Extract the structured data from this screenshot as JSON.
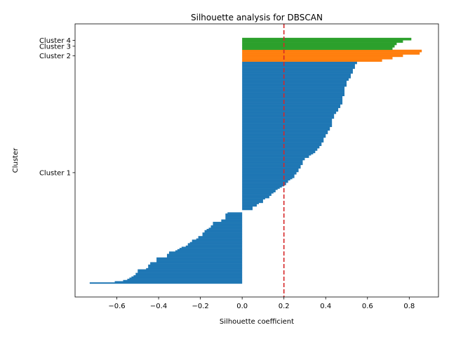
{
  "chart_data": {
    "type": "bar",
    "orientation": "horizontal",
    "title": "Silhouette analysis for DBSCAN",
    "xlabel": "Silhouette coefficient",
    "ylabel": "Cluster",
    "xlim": [
      -0.8,
      0.94
    ],
    "xticks": [
      {
        "value": -0.6,
        "label": "−0.6"
      },
      {
        "value": -0.4,
        "label": "−0.4"
      },
      {
        "value": -0.2,
        "label": "−0.2"
      },
      {
        "value": 0.0,
        "label": "0.0"
      },
      {
        "value": 0.2,
        "label": "0.2"
      },
      {
        "value": 0.4,
        "label": "0.4"
      },
      {
        "value": 0.6,
        "label": "0.6"
      },
      {
        "value": 0.8,
        "label": "0.8"
      }
    ],
    "grid": false,
    "reference_line": {
      "x": 0.2,
      "color": "#d62728",
      "style": "dashed"
    },
    "clusters": [
      {
        "label": "Cluster 1",
        "color": "#1f77b4",
        "values": [
          -0.73,
          -0.61,
          -0.57,
          -0.55,
          -0.54,
          -0.53,
          -0.52,
          -0.51,
          -0.51,
          -0.5,
          -0.5,
          -0.5,
          -0.46,
          -0.45,
          -0.45,
          -0.45,
          -0.44,
          -0.44,
          -0.41,
          -0.41,
          -0.41,
          -0.41,
          -0.36,
          -0.36,
          -0.36,
          -0.35,
          -0.35,
          -0.32,
          -0.31,
          -0.3,
          -0.29,
          -0.27,
          -0.26,
          -0.26,
          -0.25,
          -0.24,
          -0.24,
          -0.22,
          -0.21,
          -0.21,
          -0.19,
          -0.19,
          -0.19,
          -0.18,
          -0.18,
          -0.17,
          -0.16,
          -0.15,
          -0.15,
          -0.14,
          -0.14,
          -0.14,
          -0.1,
          -0.1,
          -0.08,
          -0.08,
          -0.08,
          -0.08,
          -0.08,
          -0.07,
          0.0,
          0.0,
          0.05,
          0.05,
          0.05,
          0.07,
          0.07,
          0.08,
          0.1,
          0.1,
          0.1,
          0.11,
          0.13,
          0.13,
          0.14,
          0.14,
          0.15,
          0.16,
          0.16,
          0.17,
          0.18,
          0.19,
          0.2,
          0.21,
          0.21,
          0.22,
          0.22,
          0.23,
          0.24,
          0.25,
          0.25,
          0.25,
          0.26,
          0.26,
          0.27,
          0.27,
          0.27,
          0.28,
          0.28,
          0.28,
          0.29,
          0.29,
          0.29,
          0.29,
          0.3,
          0.3,
          0.32,
          0.32,
          0.33,
          0.34,
          0.35,
          0.35,
          0.36,
          0.36,
          0.37,
          0.37,
          0.38,
          0.38,
          0.38,
          0.39,
          0.39,
          0.39,
          0.39,
          0.4,
          0.4,
          0.4,
          0.41,
          0.41,
          0.41,
          0.42,
          0.42,
          0.42,
          0.43,
          0.43,
          0.43,
          0.43,
          0.43,
          0.43,
          0.43,
          0.44,
          0.44,
          0.44,
          0.44,
          0.45,
          0.45,
          0.46,
          0.46,
          0.46,
          0.47,
          0.47,
          0.47,
          0.48,
          0.48,
          0.48,
          0.48,
          0.48,
          0.48,
          0.48,
          0.49,
          0.49,
          0.49,
          0.49,
          0.49,
          0.49,
          0.49,
          0.49,
          0.5,
          0.5,
          0.5,
          0.5,
          0.5,
          0.51,
          0.51,
          0.52,
          0.52,
          0.52,
          0.52,
          0.53,
          0.53,
          0.53,
          0.53,
          0.54,
          0.54,
          0.54,
          0.54,
          0.55,
          0.55
        ]
      },
      {
        "label": "Cluster 2",
        "color": "#ff7f0e",
        "values": [
          0.67,
          0.67,
          0.72,
          0.72,
          0.77,
          0.77,
          0.85,
          0.85,
          0.86,
          0.86
        ]
      },
      {
        "label": "Cluster 3",
        "color": "#2ca02c",
        "values": [
          0.72,
          0.72,
          0.73,
          0.73,
          0.74,
          0.74
        ]
      },
      {
        "label": "Cluster 4",
        "color": "#2ca02c",
        "values": [
          0.77,
          0.77,
          0.81,
          0.81
        ]
      }
    ]
  }
}
